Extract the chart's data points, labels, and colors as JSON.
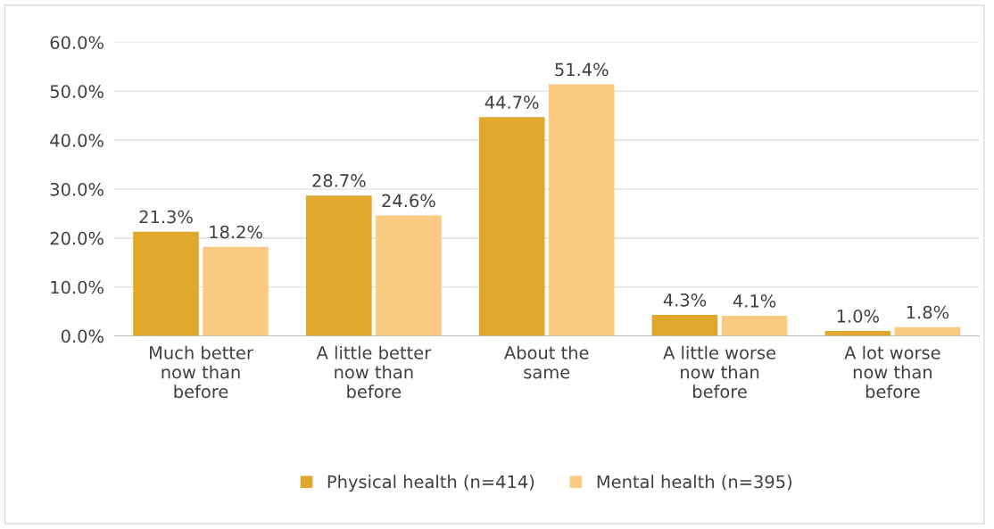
{
  "chart_data": {
    "type": "bar",
    "categories": [
      "Much better\nnow than\nbefore",
      "A little better\nnow than\nbefore",
      "About the\nsame",
      "A little worse\nnow than\nbefore",
      "A lot worse\nnow than\nbefore"
    ],
    "series": [
      {
        "name": "Physical health (n=414)",
        "color": "#dfa82a",
        "values": [
          21.3,
          28.7,
          44.7,
          4.3,
          1.0
        ],
        "value_labels": [
          "21.3%",
          "28.7%",
          "44.7%",
          "4.3%",
          "1.0%"
        ]
      },
      {
        "name": "Mental health (n=395)",
        "color": "#fbcb83",
        "values": [
          18.2,
          24.6,
          51.4,
          4.1,
          1.8
        ],
        "value_labels": [
          "18.2%",
          "24.6%",
          "51.4%",
          "4.1%",
          "1.8%"
        ]
      }
    ],
    "ylim": [
      0,
      60
    ],
    "yticks": [
      {
        "value": 0,
        "label": "0.0%"
      },
      {
        "value": 10,
        "label": "10.0%"
      },
      {
        "value": 20,
        "label": "20.0%"
      },
      {
        "value": 30,
        "label": "30.0%"
      },
      {
        "value": 40,
        "label": "40.0%"
      },
      {
        "value": 50,
        "label": "50.0%"
      },
      {
        "value": 60,
        "label": "60.0%"
      }
    ],
    "grid": "y",
    "legend": "bottom"
  }
}
